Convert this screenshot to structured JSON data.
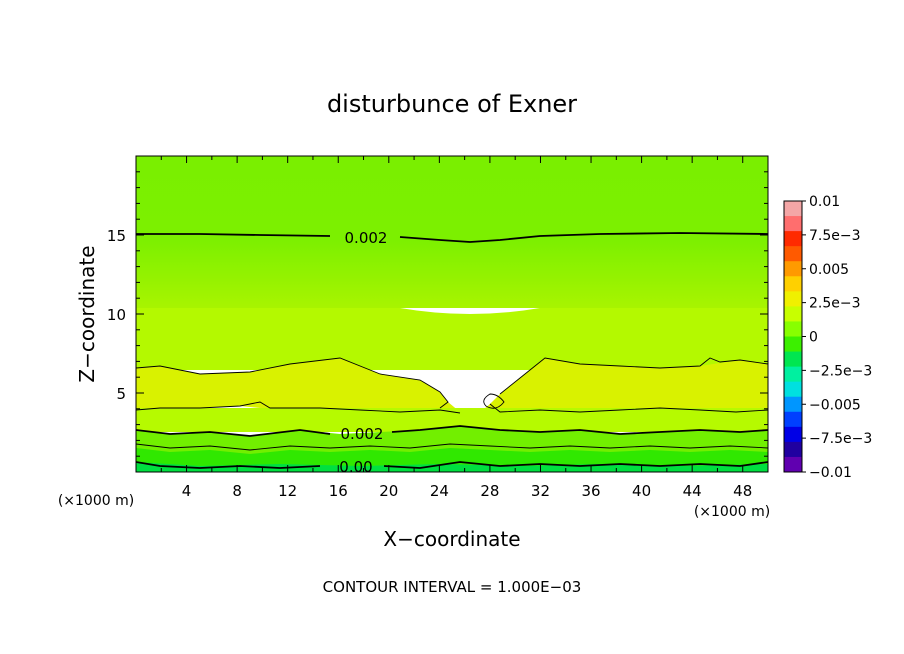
{
  "chart_data": {
    "type": "heatmap",
    "title": "disturbunce of Exner",
    "xlabel": "X−coordinate",
    "ylabel": "Z−coordinate",
    "x_unit_left": "(×1000 m)",
    "x_unit_right": "(×1000 m)",
    "xlim": [
      0,
      50
    ],
    "ylim": [
      0,
      20
    ],
    "x_ticks": [
      4,
      8,
      12,
      16,
      20,
      24,
      28,
      32,
      36,
      40,
      44,
      48
    ],
    "y_ticks": [
      5,
      10,
      15
    ],
    "footer": "CONTOUR INTERVAL = 1.000E−03",
    "colorbar": {
      "labels": [
        "0.01",
        "7.5e−3",
        "0.005",
        "2.5e−3",
        "0",
        "−2.5e−3",
        "−0.005",
        "−7.5e−3",
        "−0.01"
      ],
      "colors": [
        "#f4a6a6",
        "#ff6e6e",
        "#ff2a00",
        "#ff5a00",
        "#ff9a00",
        "#ffd000",
        "#f0f000",
        "#c8ff00",
        "#88ff00",
        "#3cf000",
        "#00e650",
        "#00f0a0",
        "#00e0e0",
        "#0096ff",
        "#0040ff",
        "#0000e6",
        "#2000a0",
        "#6000b0"
      ]
    },
    "contour_labels": [
      {
        "text": "0.002",
        "x": 19,
        "z": 15.0
      },
      {
        "text": "0.002",
        "x": 19,
        "z": 2.6
      },
      {
        "text": "0.00",
        "x": 19,
        "z": 0.3
      }
    ],
    "bands": [
      {
        "name": "top",
        "color": "#7aef00"
      },
      {
        "name": "upper-mid",
        "color": "#a8f400"
      },
      {
        "name": "mid",
        "color": "#c4ff00"
      },
      {
        "name": "core",
        "color": "#d8f300"
      },
      {
        "name": "lower",
        "color": "#6eef00"
      },
      {
        "name": "base",
        "color": "#2ee800"
      }
    ]
  }
}
